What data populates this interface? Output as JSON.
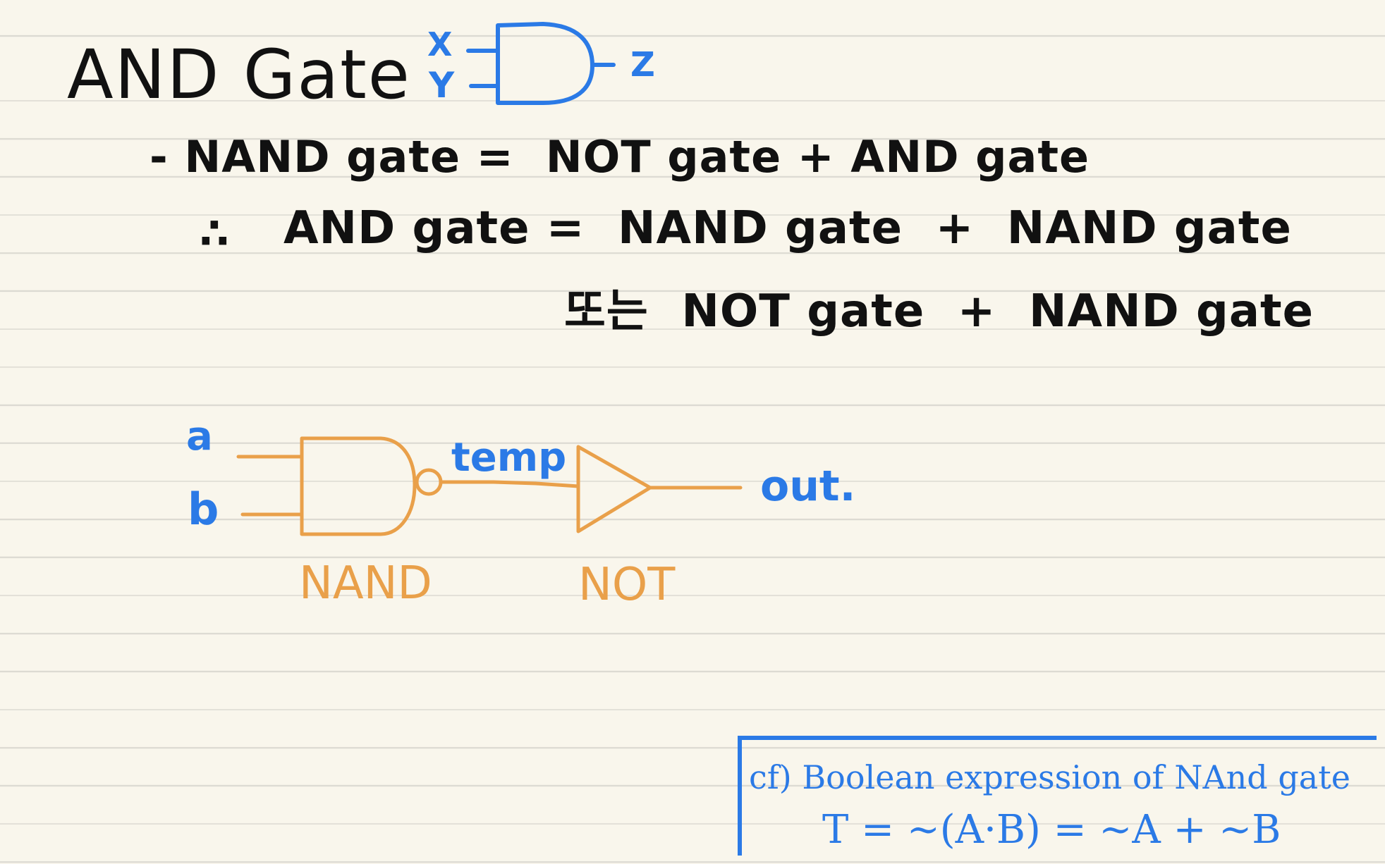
{
  "heading": {
    "title": "AND Gate"
  },
  "small_gate": {
    "input_x": "X",
    "input_y": "Y",
    "output_z": "Z"
  },
  "notes": {
    "line1": "- NAND gate =  NOT gate + AND gate",
    "line2_mark": "∴",
    "line2": "AND gate =  NAND gate  +  NAND gate",
    "line3": "또는  NOT gate  +  NAND gate"
  },
  "circuit": {
    "input_a": "a",
    "input_b": "b",
    "wire_label": "temp",
    "output_label": "out.",
    "gate1_label": "NAND",
    "gate2_label": "NOT"
  },
  "cf_box": {
    "title": "cf) Boolean expression of NAnd gate",
    "formula": "T = ~(A·B) = ~A + ~B"
  },
  "colors": {
    "paper": "#f9f6ec",
    "ink_black": "#111111",
    "ink_blue": "#2b7ae6",
    "ink_orange": "#e9a04a",
    "rule_line": "#dcdad2"
  }
}
